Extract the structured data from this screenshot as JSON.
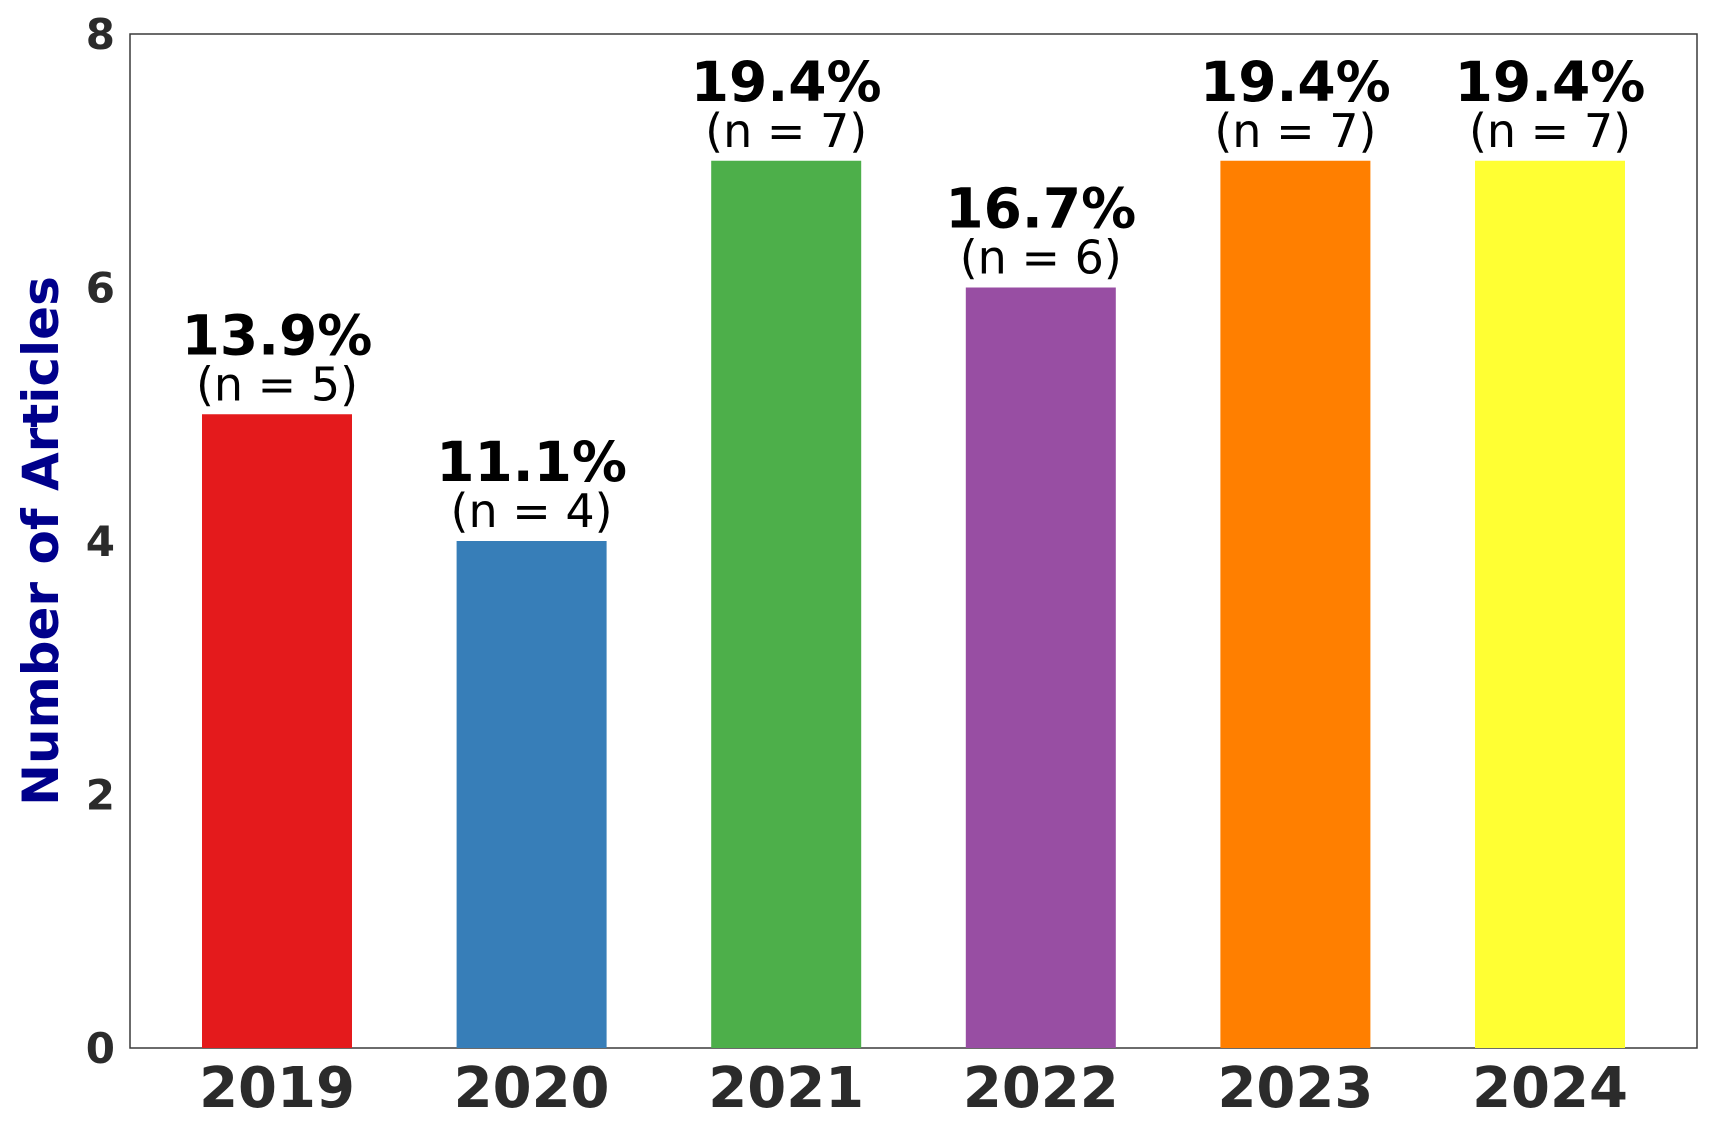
{
  "chart_data": {
    "type": "bar",
    "categories": [
      "2019",
      "2020",
      "2021",
      "2022",
      "2023",
      "2024"
    ],
    "values": [
      5,
      4,
      7,
      6,
      7,
      7
    ],
    "bar_labels": [
      "13.9%",
      "11.1%",
      "19.4%",
      "16.7%",
      "19.4%",
      "19.4%"
    ],
    "count_labels": [
      "(n = 5)",
      "(n = 4)",
      "(n = 7)",
      "(n = 6)",
      "(n = 7)",
      "(n = 7)"
    ],
    "colors": [
      "#e41a1c",
      "#377eb8",
      "#4daf4a",
      "#984ea3",
      "#ff7f00",
      "#ffff33"
    ],
    "title": "",
    "xlabel": "",
    "ylabel": "Number of Articles",
    "ylabel_color": "#00008b",
    "ylim": [
      0,
      8
    ],
    "yticks": [
      0,
      2,
      4,
      6,
      8
    ],
    "grid": false
  }
}
